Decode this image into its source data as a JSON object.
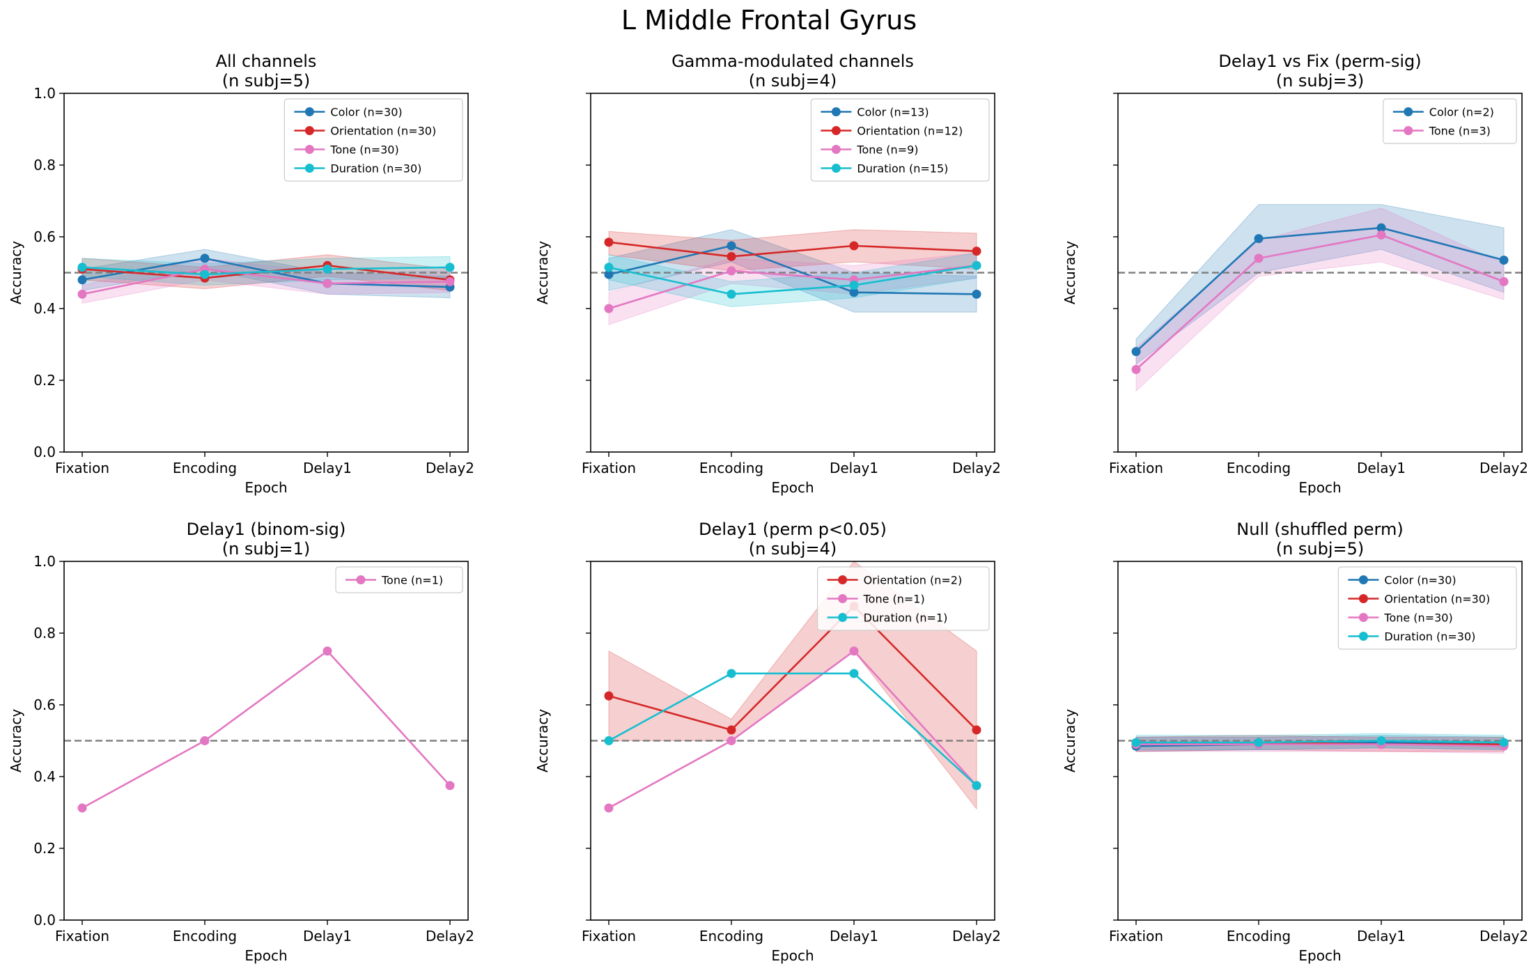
{
  "figure": {
    "suptitle": "L Middle Frontal Gyrus"
  },
  "colors": {
    "Color": "#1f77b4",
    "Orientation": "#d62728",
    "Tone": "#e377c2",
    "Duration": "#17becf",
    "chance_line": "#808080"
  },
  "chart_data": [
    {
      "type": "line",
      "title": "All channels\n(n subj=5)",
      "xlabel": "Epoch",
      "ylabel": "Accuracy",
      "categories": [
        "Fixation",
        "Encoding",
        "Delay1",
        "Delay2"
      ],
      "ylim": [
        0,
        1
      ],
      "yticks": [
        "0.0",
        "0.2",
        "0.4",
        "0.6",
        "0.8",
        "1.0"
      ],
      "show_ytick_labels": true,
      "chance": 0.5,
      "legend_position": "top-right",
      "series": [
        {
          "name": "Color (n=30)",
          "key": "Color",
          "values": [
            0.48,
            0.54,
            0.47,
            0.46
          ],
          "lower": [
            0.45,
            0.51,
            0.44,
            0.43
          ],
          "upper": [
            0.51,
            0.565,
            0.5,
            0.49
          ]
        },
        {
          "name": "Orientation (n=30)",
          "key": "Orientation",
          "values": [
            0.51,
            0.485,
            0.52,
            0.48
          ],
          "lower": [
            0.48,
            0.455,
            0.49,
            0.45
          ],
          "upper": [
            0.54,
            0.515,
            0.55,
            0.51
          ]
        },
        {
          "name": "Tone (n=30)",
          "key": "Tone",
          "values": [
            0.44,
            0.51,
            0.47,
            0.475
          ],
          "lower": [
            0.415,
            0.48,
            0.44,
            0.445
          ],
          "upper": [
            0.465,
            0.54,
            0.5,
            0.505
          ]
        },
        {
          "name": "Duration (n=30)",
          "key": "Duration",
          "values": [
            0.515,
            0.495,
            0.51,
            0.515
          ],
          "lower": [
            0.49,
            0.465,
            0.48,
            0.485
          ],
          "upper": [
            0.54,
            0.525,
            0.54,
            0.545
          ]
        }
      ]
    },
    {
      "type": "line",
      "title": "Gamma-modulated channels\n(n subj=4)",
      "xlabel": "Epoch",
      "ylabel": "Accuracy",
      "categories": [
        "Fixation",
        "Encoding",
        "Delay1",
        "Delay2"
      ],
      "ylim": [
        0,
        1
      ],
      "yticks": [
        "0.0",
        "0.2",
        "0.4",
        "0.6",
        "0.8",
        "1.0"
      ],
      "show_ytick_labels": false,
      "chance": 0.5,
      "legend_position": "top-right",
      "series": [
        {
          "name": "Color (n=13)",
          "key": "Color",
          "values": [
            0.495,
            0.575,
            0.445,
            0.44
          ],
          "lower": [
            0.45,
            0.53,
            0.39,
            0.39
          ],
          "upper": [
            0.54,
            0.62,
            0.5,
            0.49
          ]
        },
        {
          "name": "Orientation (n=12)",
          "key": "Orientation",
          "values": [
            0.585,
            0.545,
            0.575,
            0.56
          ],
          "lower": [
            0.55,
            0.505,
            0.53,
            0.51
          ],
          "upper": [
            0.615,
            0.59,
            0.62,
            0.61
          ]
        },
        {
          "name": "Tone (n=9)",
          "key": "Tone",
          "values": [
            0.4,
            0.505,
            0.48,
            0.52
          ],
          "lower": [
            0.355,
            0.47,
            0.44,
            0.485
          ],
          "upper": [
            0.445,
            0.54,
            0.52,
            0.555
          ]
        },
        {
          "name": "Duration (n=15)",
          "key": "Duration",
          "values": [
            0.515,
            0.44,
            0.465,
            0.52
          ],
          "lower": [
            0.48,
            0.405,
            0.43,
            0.485
          ],
          "upper": [
            0.55,
            0.475,
            0.5,
            0.555
          ]
        }
      ]
    },
    {
      "type": "line",
      "title": "Delay1 vs Fix (perm-sig)\n(n subj=3)",
      "xlabel": "Epoch",
      "ylabel": "Accuracy",
      "categories": [
        "Fixation",
        "Encoding",
        "Delay1",
        "Delay2"
      ],
      "ylim": [
        0,
        1
      ],
      "yticks": [
        "0.0",
        "0.2",
        "0.4",
        "0.6",
        "0.8",
        "1.0"
      ],
      "show_ytick_labels": false,
      "chance": 0.5,
      "legend_position": "top-right",
      "series": [
        {
          "name": "Color (n=2)",
          "key": "Color",
          "values": [
            0.28,
            0.595,
            0.625,
            0.535
          ],
          "lower": [
            0.245,
            0.5,
            0.565,
            0.445
          ],
          "upper": [
            0.315,
            0.69,
            0.69,
            0.625
          ]
        },
        {
          "name": "Tone (n=3)",
          "key": "Tone",
          "values": [
            0.23,
            0.54,
            0.605,
            0.475
          ],
          "lower": [
            0.17,
            0.49,
            0.53,
            0.425
          ],
          "upper": [
            0.29,
            0.59,
            0.68,
            0.525
          ]
        }
      ]
    },
    {
      "type": "line",
      "title": "Delay1 (binom-sig)\n(n subj=1)",
      "xlabel": "Epoch",
      "ylabel": "Accuracy",
      "categories": [
        "Fixation",
        "Encoding",
        "Delay1",
        "Delay2"
      ],
      "ylim": [
        0,
        1
      ],
      "yticks": [
        "0.0",
        "0.2",
        "0.4",
        "0.6",
        "0.8",
        "1.0"
      ],
      "show_ytick_labels": true,
      "chance": 0.5,
      "legend_position": "top-right",
      "series": [
        {
          "name": "Tone (n=1)",
          "key": "Tone",
          "values": [
            0.3125,
            0.5,
            0.75,
            0.375
          ]
        }
      ]
    },
    {
      "type": "line",
      "title": "Delay1 (perm p<0.05)\n(n subj=4)",
      "xlabel": "Epoch",
      "ylabel": "Accuracy",
      "categories": [
        "Fixation",
        "Encoding",
        "Delay1",
        "Delay2"
      ],
      "ylim": [
        0,
        1
      ],
      "yticks": [
        "0.0",
        "0.2",
        "0.4",
        "0.6",
        "0.8",
        "1.0"
      ],
      "show_ytick_labels": false,
      "chance": 0.5,
      "legend_position": "top-right",
      "series": [
        {
          "name": "Orientation (n=2)",
          "key": "Orientation",
          "values": [
            0.625,
            0.53,
            0.875,
            0.53
          ],
          "lower": [
            0.5,
            0.5,
            0.75,
            0.31
          ],
          "upper": [
            0.75,
            0.56,
            1.0,
            0.75
          ]
        },
        {
          "name": "Tone (n=1)",
          "key": "Tone",
          "values": [
            0.3125,
            0.5,
            0.75,
            0.375
          ]
        },
        {
          "name": "Duration (n=1)",
          "key": "Duration",
          "values": [
            0.5,
            0.6875,
            0.6875,
            0.375
          ]
        }
      ]
    },
    {
      "type": "line",
      "title": "Null (shuffled perm)\n(n subj=5)",
      "xlabel": "Epoch",
      "ylabel": "Accuracy",
      "categories": [
        "Fixation",
        "Encoding",
        "Delay1",
        "Delay2"
      ],
      "ylim": [
        0,
        1
      ],
      "yticks": [
        "0.0",
        "0.2",
        "0.4",
        "0.6",
        "0.8",
        "1.0"
      ],
      "show_ytick_labels": false,
      "chance": 0.5,
      "legend_position": "top-right",
      "series": [
        {
          "name": "Color (n=30)",
          "key": "Color",
          "values": [
            0.485,
            0.49,
            0.495,
            0.49
          ],
          "lower": [
            0.47,
            0.475,
            0.48,
            0.475
          ],
          "upper": [
            0.51,
            0.51,
            0.515,
            0.51
          ]
        },
        {
          "name": "Orientation (n=30)",
          "key": "Orientation",
          "values": [
            0.49,
            0.495,
            0.49,
            0.49
          ],
          "lower": [
            0.47,
            0.475,
            0.47,
            0.47
          ],
          "upper": [
            0.51,
            0.515,
            0.51,
            0.51
          ]
        },
        {
          "name": "Tone (n=30)",
          "key": "Tone",
          "values": [
            0.49,
            0.49,
            0.49,
            0.485
          ],
          "lower": [
            0.47,
            0.47,
            0.47,
            0.465
          ],
          "upper": [
            0.51,
            0.51,
            0.51,
            0.505
          ]
        },
        {
          "name": "Duration (n=30)",
          "key": "Duration",
          "values": [
            0.495,
            0.495,
            0.5,
            0.495
          ],
          "lower": [
            0.475,
            0.475,
            0.48,
            0.475
          ],
          "upper": [
            0.515,
            0.515,
            0.52,
            0.515
          ]
        }
      ]
    }
  ]
}
